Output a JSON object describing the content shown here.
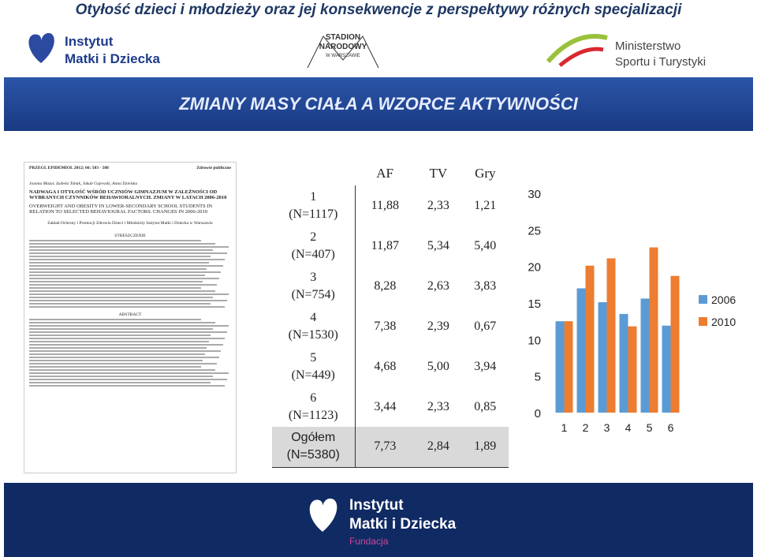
{
  "header": {
    "title": "Otyłość dzieci i młodzieży oraz jej konsekwencje z perspektywy różnych specjalizacji",
    "logo_left": [
      "Instytut",
      "Matki i Dziecka"
    ],
    "logo_center": [
      "STADION",
      "NARODOWY",
      "W WARSZAWIE"
    ],
    "logo_right": [
      "Ministerstwo",
      "Sportu i Turystyki"
    ]
  },
  "banner": {
    "title": "ZMIANY MASY CIAŁA  A  WZORCE AKTYWNOŚCI"
  },
  "paper": {
    "journal": "PRZEGL EPIDEMIOL 2012; 66: 503 - 508",
    "section": "Zdrowie publiczne",
    "authors": "Joanna Mazur, Izabela Tabak, Jakub Gajewski, Anna Dzielska",
    "title_pl": "NADWAGA I OTYŁOŚĆ WŚRÓD UCZNIÓW GIMNAZJUM W ZALEŻNOŚCI OD WYBRANYCH CZYNNIKÓW BEHAWIORALNYCH. ZMIANY W LATACH 2006-2010",
    "title_en": "OVERWEIGHT AND OBESITY IN LOWER-SECONDARY SCHOOL STUDENTS IN RELATION TO SELECTED BEHAVIOURAL FACTORS. CHANGES IN 2006-2010",
    "affiliation": "Zakład Ochrony i Promocji Zdrowia Dzieci i Młodzieży Instytut Matki i Dziecka w Warszawie",
    "abstract_pl": "STRESZCZENIE",
    "abstract_en": "ABSTRACT"
  },
  "table": {
    "header": [
      "AF",
      "TV",
      "Gry"
    ],
    "rows": [
      {
        "label": [
          "1",
          "(N=1117)"
        ],
        "values": [
          "11,88",
          "2,33",
          "1,21"
        ]
      },
      {
        "label": [
          "2",
          "(N=407)"
        ],
        "values": [
          "11,87",
          "5,34",
          "5,40"
        ]
      },
      {
        "label": [
          "3",
          "(N=754)"
        ],
        "values": [
          "8,28",
          "2,63",
          "3,83"
        ]
      },
      {
        "label": [
          "4",
          "(N=1530)"
        ],
        "values": [
          "7,38",
          "2,39",
          "0,67"
        ]
      },
      {
        "label": [
          "5",
          "(N=449)"
        ],
        "values": [
          "4,68",
          "5,00",
          "3,94"
        ]
      },
      {
        "label": [
          "6",
          "(N=1123)"
        ],
        "values": [
          "3,44",
          "2,33",
          "0,85"
        ]
      },
      {
        "label": [
          "Ogółem",
          "(N=5380)"
        ],
        "values": [
          "7,73",
          "2,84",
          "1,89"
        ]
      }
    ]
  },
  "chart_data": {
    "type": "bar",
    "categories": [
      "1",
      "2",
      "3",
      "4",
      "5",
      "6"
    ],
    "series": [
      {
        "name": "2006",
        "color": "#5b9bd5",
        "values": [
          12.5,
          17.0,
          15.1,
          13.5,
          15.6,
          11.9
        ]
      },
      {
        "name": "2010",
        "color": "#ed7d31",
        "values": [
          12.5,
          20.1,
          21.1,
          11.8,
          22.6,
          18.7
        ]
      }
    ],
    "ylim": [
      0,
      30
    ],
    "yticks": [
      0,
      5,
      10,
      15,
      20,
      25,
      30
    ],
    "grid": false,
    "legend": "right"
  },
  "footer": {
    "logo": [
      "Instytut",
      "Matki i Dziecka"
    ],
    "tagline": "Fundacja"
  }
}
